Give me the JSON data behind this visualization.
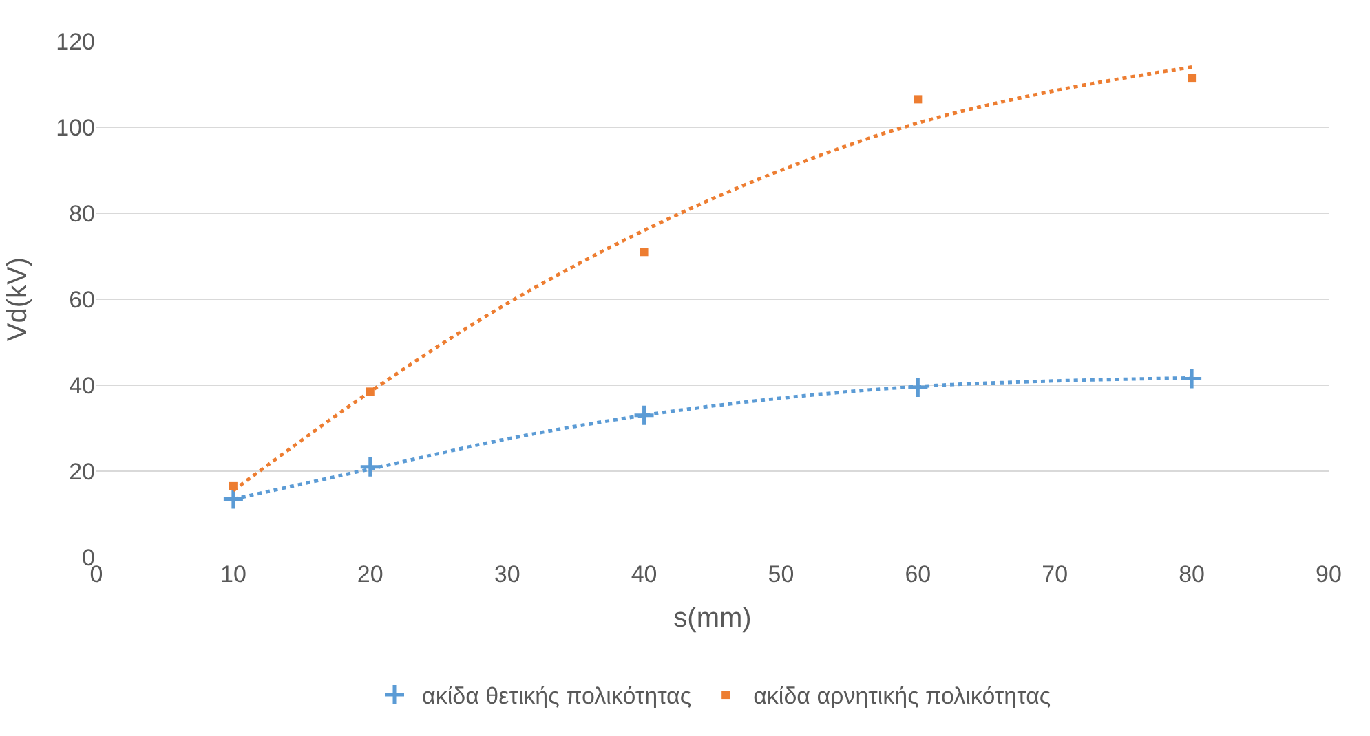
{
  "chart_data": {
    "type": "scatter",
    "xlabel": "s(mm)",
    "ylabel": "Vd(kV)",
    "x": [
      10,
      20,
      40,
      60,
      80
    ],
    "series": [
      {
        "name": "ακίδα θετικής πολικότητας",
        "color": "#5b9bd5",
        "values": [
          13.5,
          21,
          33,
          39.5,
          41.5
        ],
        "marker": "cross"
      },
      {
        "name": "ακίδα αρνητικής πολικότητας",
        "color": "#ed7d31",
        "values": [
          16.5,
          38.5,
          71,
          106.5,
          111.5
        ],
        "marker": "square"
      },
      {
        "type": "line",
        "color": "#5b9bd5",
        "x": [
          10,
          20,
          30,
          40,
          50,
          60,
          70,
          80
        ],
        "values": [
          13.5,
          20.5,
          27.5,
          33,
          37,
          39.7,
          41,
          41.7
        ],
        "line_style": "dotted"
      },
      {
        "type": "line",
        "color": "#ed7d31",
        "x": [
          10,
          20,
          30,
          40,
          50,
          60,
          70,
          80
        ],
        "values": [
          15.5,
          38.5,
          59,
          76,
          90,
          101,
          108.5,
          114
        ],
        "line_style": "dotted"
      }
    ],
    "xlim": [
      0,
      90
    ],
    "xticks": [
      0,
      10,
      20,
      30,
      40,
      50,
      60,
      70,
      80,
      90
    ],
    "ylim": [
      0,
      120
    ],
    "yticks": [
      0,
      20,
      40,
      60,
      80,
      100,
      120
    ],
    "grid": "y",
    "legend": "bottom"
  }
}
